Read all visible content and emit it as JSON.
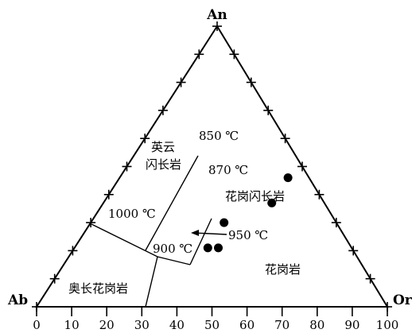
{
  "apices": {
    "top": "An",
    "left": "Ab",
    "right": "Or"
  },
  "bottom_axis_ticks": [
    "0",
    "10",
    "20",
    "30",
    "40",
    "50",
    "60",
    "70",
    "80",
    "90",
    "100"
  ],
  "field_labels": {
    "tonalite_line1": "英云",
    "tonalite_line2": "闪长岩",
    "granodiorite": "花岗闪长岩",
    "granite": "花岗岩",
    "trondhjemite": "奥长花岗岩"
  },
  "points": [
    {
      "name": "point-850",
      "label": "850 ℃",
      "or": 48,
      "an": 46
    },
    {
      "name": "point-870",
      "label": "870 ℃",
      "or": 48,
      "an": 37
    },
    {
      "name": "point-1000",
      "label": "1000 ℃",
      "or": 38,
      "an": 30
    },
    {
      "name": "point-900",
      "label": "900 ℃",
      "or": 38,
      "an": 21
    },
    {
      "name": "point-950",
      "label": "950 ℃",
      "or": 41,
      "an": 21
    }
  ]
}
